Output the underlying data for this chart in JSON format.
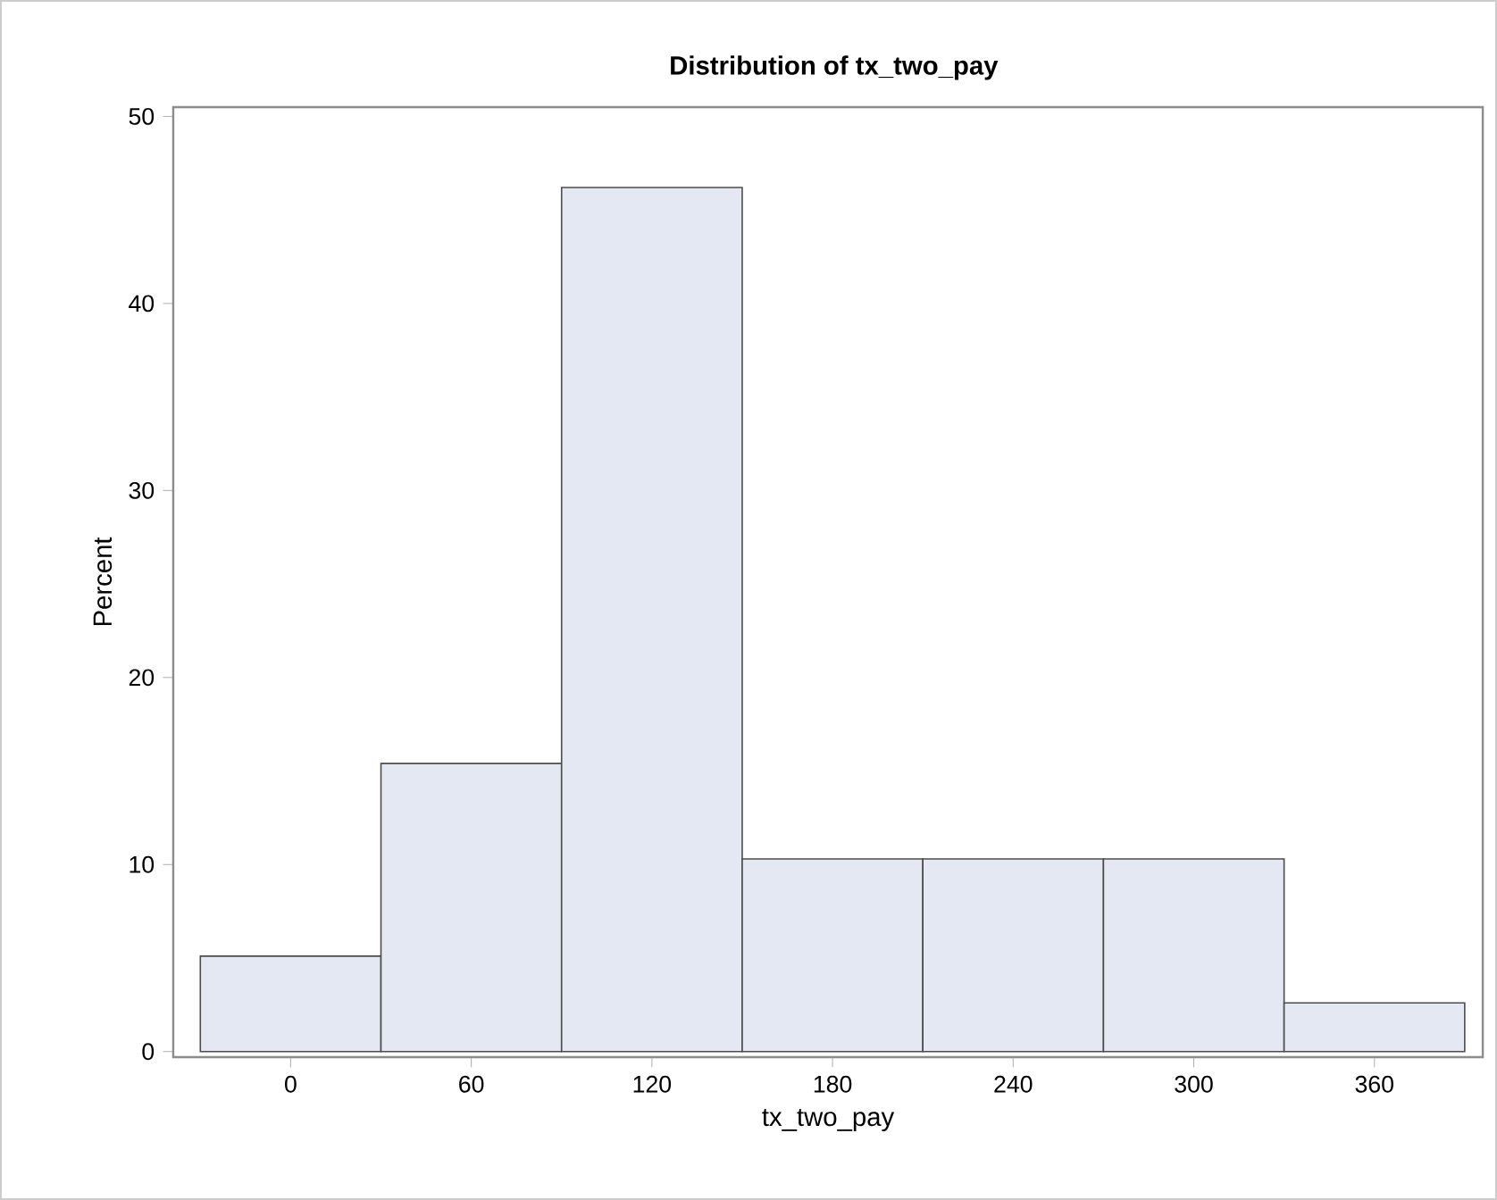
{
  "chart_data": {
    "type": "histogram",
    "title": "Distribution of tx_two_pay",
    "xlabel": "tx_two_pay",
    "ylabel": "Percent",
    "bins": [
      -30,
      30,
      90,
      150,
      210,
      270,
      330,
      390
    ],
    "values": [
      5.1,
      15.4,
      46.2,
      10.3,
      10.3,
      10.3,
      2.6
    ],
    "color": "#e4e8f2",
    "xlim": [
      -39,
      396
    ],
    "ylim": [
      -0.3,
      50.5
    ],
    "xticks": [
      0,
      60,
      120,
      180,
      240,
      300,
      360
    ],
    "yticks": [
      0,
      10,
      20,
      30,
      40,
      50
    ]
  }
}
